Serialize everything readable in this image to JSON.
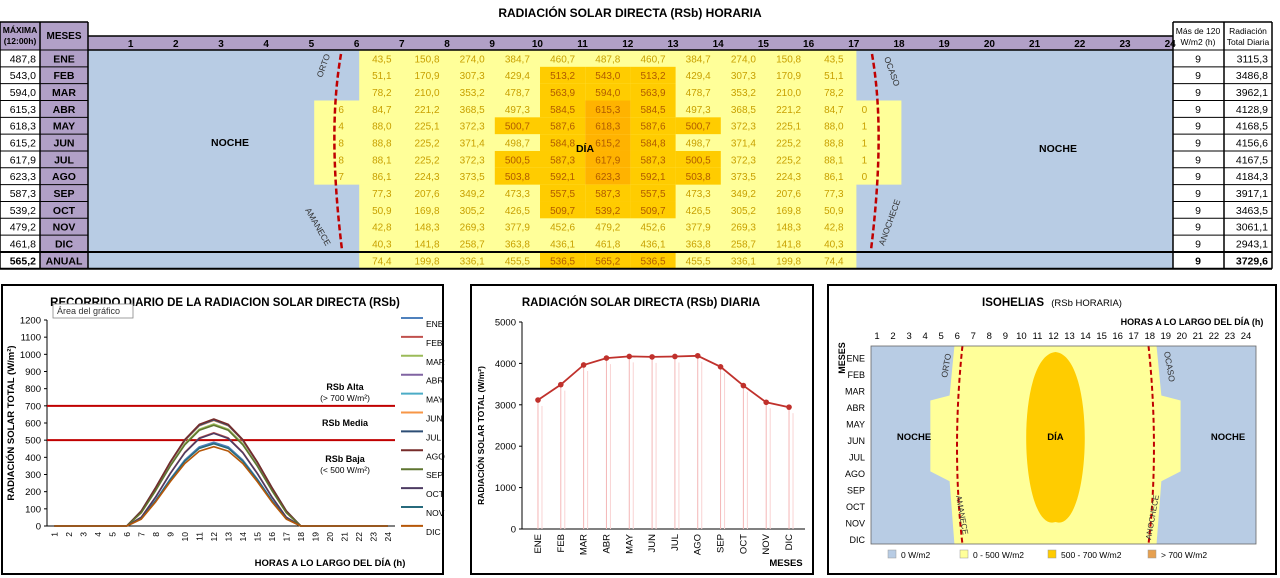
{
  "colors": {
    "night": "#b8cce4",
    "header": "#b1a0c7",
    "low": "#ffff99",
    "low_text": "#c8a000",
    "mid": "#ffcc00",
    "mid_text": "#b05a00",
    "high": "#f0b000",
    "high_text": "#ffffff",
    "dark_red": "#c00000"
  },
  "table": {
    "title": "RADIACIÓN SOLAR DIRECTA (RSb) HORARIA",
    "hdr_max": "MÁXIMA",
    "hdr_max2": "(12:00h)",
    "hdr_months": "MESES",
    "hdr_hours_over": "Más de 120",
    "hdr_hours_over2": "W/m2 (h)",
    "hdr_total": "Radiación",
    "hdr_total2": "Total Diaria",
    "hours": [
      "1",
      "2",
      "3",
      "4",
      "5",
      "6",
      "7",
      "8",
      "9",
      "10",
      "11",
      "12",
      "13",
      "14",
      "15",
      "16",
      "17",
      "18",
      "19",
      "20",
      "21",
      "22",
      "23",
      "24"
    ],
    "noche_left": "NOCHE",
    "noche_right": "NOCHE",
    "dia": "DÍA",
    "orto": "ORTO",
    "ocaso": "OCASO",
    "amanece": "AMANECE",
    "anochece": "ANOCHECE",
    "rows": [
      {
        "max": "487,8",
        "month": "ENE",
        "vals": [
          "43,5",
          "150,8",
          "274,0",
          "384,7",
          "460,7",
          "487,8",
          "460,7",
          "384,7",
          "274,0",
          "150,8",
          "43,5"
        ],
        "hours_over": "9",
        "total": "3115,3"
      },
      {
        "max": "543,0",
        "month": "FEB",
        "vals": [
          "51,1",
          "170,9",
          "307,3",
          "429,4",
          "513,2",
          "543,0",
          "513,2",
          "429,4",
          "307,3",
          "170,9",
          "51,1"
        ],
        "hours_over": "9",
        "total": "3486,8"
      },
      {
        "max": "594,0",
        "month": "MAR",
        "vals": [
          "78,2",
          "210,0",
          "353,2",
          "478,7",
          "563,9",
          "594,0",
          "563,9",
          "478,7",
          "353,2",
          "210,0",
          "78,2"
        ],
        "hours_over": "9",
        "total": "3962,1"
      },
      {
        "max": "615,3",
        "month": "ABR",
        "vals": [
          "84,7",
          "221,2",
          "368,5",
          "497,3",
          "584,5",
          "615,3",
          "584,5",
          "497,3",
          "368,5",
          "221,2",
          "84,7"
        ],
        "hours_over": "9",
        "total": "4128,9"
      },
      {
        "max": "618,3",
        "month": "MAY",
        "vals": [
          "88,0",
          "225,1",
          "372,3",
          "500,7",
          "587,6",
          "618,3",
          "587,6",
          "500,7",
          "372,3",
          "225,1",
          "88,0"
        ],
        "hours_over": "9",
        "total": "4168,5"
      },
      {
        "max": "615,2",
        "month": "JUN",
        "vals": [
          "88,8",
          "225,2",
          "371,4",
          "498,7",
          "584,8",
          "615,2",
          "584,8",
          "498,7",
          "371,4",
          "225,2",
          "88,8"
        ],
        "hours_over": "9",
        "total": "4156,6"
      },
      {
        "max": "617,9",
        "month": "JUL",
        "vals": [
          "88,1",
          "225,2",
          "372,3",
          "500,5",
          "587,3",
          "617,9",
          "587,3",
          "500,5",
          "372,3",
          "225,2",
          "88,1"
        ],
        "hours_over": "9",
        "total": "4167,5"
      },
      {
        "max": "623,3",
        "month": "AGO",
        "vals": [
          "86,1",
          "224,3",
          "373,5",
          "503,8",
          "592,1",
          "623,3",
          "592,1",
          "503,8",
          "373,5",
          "224,3",
          "86,1"
        ],
        "hours_over": "9",
        "total": "4184,3"
      },
      {
        "max": "587,3",
        "month": "SEP",
        "vals": [
          "77,3",
          "207,6",
          "349,2",
          "473,3",
          "557,5",
          "587,3",
          "557,5",
          "473,3",
          "349,2",
          "207,6",
          "77,3"
        ],
        "hours_over": "9",
        "total": "3917,1"
      },
      {
        "max": "539,2",
        "month": "OCT",
        "vals": [
          "50,9",
          "169,8",
          "305,2",
          "426,5",
          "509,7",
          "539,2",
          "509,7",
          "426,5",
          "305,2",
          "169,8",
          "50,9"
        ],
        "hours_over": "9",
        "total": "3463,5"
      },
      {
        "max": "479,2",
        "month": "NOV",
        "vals": [
          "42,8",
          "148,3",
          "269,3",
          "377,9",
          "452,6",
          "479,2",
          "452,6",
          "377,9",
          "269,3",
          "148,3",
          "42,8"
        ],
        "hours_over": "9",
        "total": "3061,1"
      },
      {
        "max": "461,8",
        "month": "DIC",
        "vals": [
          "40,3",
          "141,8",
          "258,7",
          "363,8",
          "436,1",
          "461,8",
          "436,1",
          "363,8",
          "258,7",
          "141,8",
          "40,3"
        ],
        "hours_over": "9",
        "total": "2943,1"
      }
    ],
    "annual": {
      "max": "565,2",
      "month": "ANUAL",
      "vals": [
        "74,4",
        "199,8",
        "336,1",
        "455,5",
        "536,5",
        "565,2",
        "536,5",
        "455,5",
        "336,1",
        "199,8",
        "74,4"
      ],
      "hours_over": "9",
      "total": "3729,6"
    },
    "edge_vals": [
      "6",
      "4",
      "8",
      "8",
      "7"
    ],
    "edge_vals_right": [
      "0",
      "1",
      "1",
      "1",
      "0"
    ]
  },
  "chart_data": [
    {
      "type": "line",
      "title": "RECORRIDO DIARIO DE LA RADIACION SOLAR DIRECTA (RSb)",
      "tooltip": "Área del gráfico",
      "xlabel": "HORAS A LO LARGO DEL DÍA (h)",
      "ylabel": "RADIACIÓN SOLAR TOTAL (W/m²)",
      "ylim": [
        0,
        1200
      ],
      "yticks": [
        "0",
        "100",
        "200",
        "300",
        "400",
        "500",
        "600",
        "700",
        "800",
        "900",
        "1000",
        "1100",
        "1200"
      ],
      "x": [
        "1",
        "2",
        "3",
        "4",
        "5",
        "6",
        "7",
        "8",
        "9",
        "10",
        "11",
        "12",
        "13",
        "14",
        "15",
        "16",
        "17",
        "18",
        "19",
        "20",
        "21",
        "22",
        "23",
        "24"
      ],
      "reference_lines": [
        {
          "name": "RSb Alta",
          "label": "(> 700 W/m²)",
          "value": 700
        },
        {
          "name": "RSb Media",
          "label": "",
          "value": 500
        },
        {
          "name": "RSb Baja",
          "label": "(< 500 W/m²)",
          "value": 500
        }
      ],
      "ann_alta": "RSb Alta",
      "ann_alta2": "(> 700 W/m²)",
      "ann_media": "RSb Media",
      "ann_baja": "RSb Baja",
      "ann_baja2": "(< 500 W/m²)",
      "series": [
        {
          "name": "ENE",
          "color": "#4f81bd",
          "values": [
            0,
            0,
            0,
            0,
            0,
            0,
            43.5,
            150.8,
            274.0,
            384.7,
            460.7,
            487.8,
            460.7,
            384.7,
            274.0,
            150.8,
            43.5,
            0,
            0,
            0,
            0,
            0,
            0,
            0
          ]
        },
        {
          "name": "FEB",
          "color": "#c0504d",
          "values": [
            0,
            0,
            0,
            0,
            0,
            0,
            51.1,
            170.9,
            307.3,
            429.4,
            513.2,
            543.0,
            513.2,
            429.4,
            307.3,
            170.9,
            51.1,
            0,
            0,
            0,
            0,
            0,
            0,
            0
          ]
        },
        {
          "name": "MAR",
          "color": "#9bbb59",
          "values": [
            0,
            0,
            0,
            0,
            0,
            0,
            78.2,
            210.0,
            353.2,
            478.7,
            563.9,
            594.0,
            563.9,
            478.7,
            353.2,
            210.0,
            78.2,
            0,
            0,
            0,
            0,
            0,
            0,
            0
          ]
        },
        {
          "name": "ABR",
          "color": "#8064a2",
          "values": [
            0,
            0,
            0,
            0,
            0,
            0,
            84.7,
            221.2,
            368.5,
            497.3,
            584.5,
            615.3,
            584.5,
            497.3,
            368.5,
            221.2,
            84.7,
            0,
            0,
            0,
            0,
            0,
            0,
            0
          ]
        },
        {
          "name": "MAY",
          "color": "#4bacc6",
          "values": [
            0,
            0,
            0,
            0,
            0,
            0,
            88.0,
            225.1,
            372.3,
            500.7,
            587.6,
            618.3,
            587.6,
            500.7,
            372.3,
            225.1,
            88.0,
            0,
            0,
            0,
            0,
            0,
            0,
            0
          ]
        },
        {
          "name": "JUN",
          "color": "#f79646",
          "values": [
            0,
            0,
            0,
            0,
            0,
            0,
            88.8,
            225.2,
            371.4,
            498.7,
            584.8,
            615.2,
            584.8,
            498.7,
            371.4,
            225.2,
            88.8,
            0,
            0,
            0,
            0,
            0,
            0,
            0
          ]
        },
        {
          "name": "JUL",
          "color": "#2c4d75",
          "values": [
            0,
            0,
            0,
            0,
            0,
            0,
            88.1,
            225.2,
            372.3,
            500.5,
            587.3,
            617.9,
            587.3,
            500.5,
            372.3,
            225.2,
            88.1,
            0,
            0,
            0,
            0,
            0,
            0,
            0
          ]
        },
        {
          "name": "AGO",
          "color": "#772c2a",
          "values": [
            0,
            0,
            0,
            0,
            0,
            0,
            86.1,
            224.3,
            373.5,
            503.8,
            592.1,
            623.3,
            592.1,
            503.8,
            373.5,
            224.3,
            86.1,
            0,
            0,
            0,
            0,
            0,
            0,
            0
          ]
        },
        {
          "name": "SEP",
          "color": "#5f7530",
          "values": [
            0,
            0,
            0,
            0,
            0,
            0,
            77.3,
            207.6,
            349.2,
            473.3,
            557.5,
            587.3,
            557.5,
            473.3,
            349.2,
            207.6,
            77.3,
            0,
            0,
            0,
            0,
            0,
            0,
            0
          ]
        },
        {
          "name": "OCT",
          "color": "#4d3b62",
          "values": [
            0,
            0,
            0,
            0,
            0,
            0,
            50.9,
            169.8,
            305.2,
            426.5,
            509.7,
            539.2,
            509.7,
            426.5,
            305.2,
            169.8,
            50.9,
            0,
            0,
            0,
            0,
            0,
            0,
            0
          ]
        },
        {
          "name": "NOV",
          "color": "#276a7c",
          "values": [
            0,
            0,
            0,
            0,
            0,
            0,
            42.8,
            148.3,
            269.3,
            377.9,
            452.6,
            479.2,
            452.6,
            377.9,
            269.3,
            148.3,
            42.8,
            0,
            0,
            0,
            0,
            0,
            0,
            0
          ]
        },
        {
          "name": "DIC",
          "color": "#b65708",
          "values": [
            0,
            0,
            0,
            0,
            0,
            0,
            40.3,
            141.8,
            258.7,
            363.8,
            436.1,
            461.8,
            436.1,
            363.8,
            258.7,
            141.8,
            40.3,
            0,
            0,
            0,
            0,
            0,
            0,
            0
          ]
        }
      ]
    },
    {
      "type": "line",
      "title": "RADIACIÓN SOLAR DIRECTA (RSb) DIARIA",
      "xlabel": "MESES",
      "ylabel": "RADIACIÓN SOLAR TOTAL (W/m²)",
      "ylim": [
        0,
        5000
      ],
      "yticks": [
        "0",
        "1000",
        "2000",
        "3000",
        "4000",
        "5000"
      ],
      "categories": [
        "ENE",
        "FEB",
        "MAR",
        "ABR",
        "MAY",
        "JUN",
        "JUL",
        "AGO",
        "SEP",
        "OCT",
        "NOV",
        "DIC"
      ],
      "values": [
        3115.3,
        3486.8,
        3962.1,
        4128.9,
        4168.5,
        4156.6,
        4167.5,
        4184.3,
        3917.1,
        3463.5,
        3061.1,
        2943.1
      ]
    },
    {
      "type": "heatmap",
      "title": "ISOHELIAS",
      "subtitle": "(RSb HORARIA)",
      "xlabel": "HORAS A LO LARGO DEL DÍA (h)",
      "ylabel": "MESES",
      "x": [
        "1",
        "2",
        "3",
        "4",
        "5",
        "6",
        "7",
        "8",
        "9",
        "10",
        "11",
        "12",
        "13",
        "14",
        "15",
        "16",
        "17",
        "18",
        "19",
        "20",
        "21",
        "22",
        "23",
        "24"
      ],
      "categories": [
        "ENE",
        "FEB",
        "MAR",
        "ABR",
        "MAY",
        "JUN",
        "JUL",
        "AGO",
        "SEP",
        "OCT",
        "NOV",
        "DIC"
      ],
      "noche_left": "NOCHE",
      "noche_right": "NOCHE",
      "dia": "DÍA",
      "orto": "ORTO",
      "ocaso": "OCASO",
      "amanece": "AMANECE",
      "anochece": "ANOCHECE",
      "legend": [
        {
          "label": "0 W/m2",
          "color": "#b8cce4"
        },
        {
          "label": "0 - 500 W/m2",
          "color": "#ffff99"
        },
        {
          "label": "500 - 700 W/m2",
          "color": "#ffcc00"
        },
        {
          "label": "> 700 W/m2",
          "color": "#e6a050"
        }
      ]
    }
  ]
}
